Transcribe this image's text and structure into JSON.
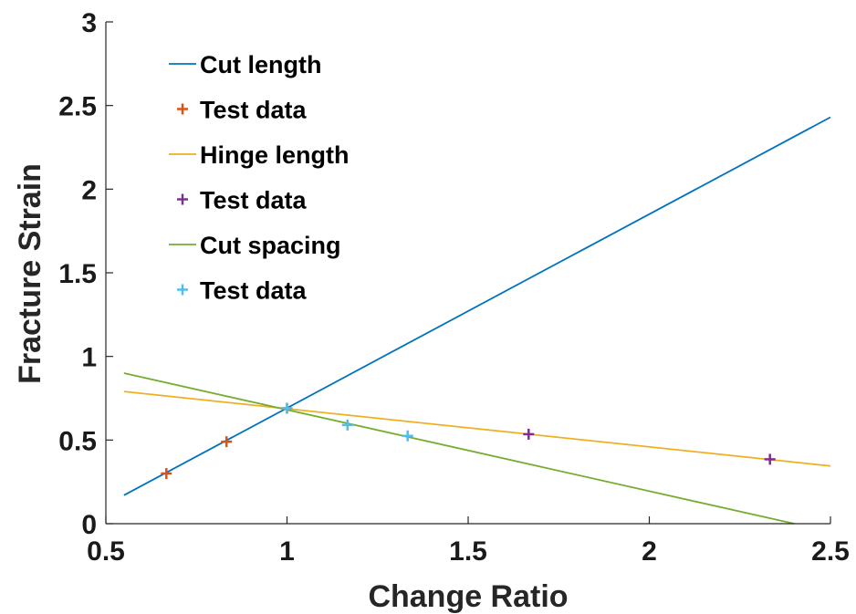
{
  "chart_data": {
    "type": "line",
    "xlabel": "Change Ratio",
    "ylabel": "Fracture Strain",
    "xlim": [
      0.5,
      2.5
    ],
    "ylim": [
      0,
      3
    ],
    "xticks": [
      "0.5",
      "1",
      "1.5",
      "2",
      "2.5"
    ],
    "yticks": [
      "0",
      "0.5",
      "1",
      "1.5",
      "2",
      "2.5",
      "3"
    ],
    "grid": false,
    "legend_position": "top-left",
    "series": [
      {
        "name": "Cut length",
        "kind": "line",
        "color": "#0072BD",
        "x": [
          0.55,
          2.5
        ],
        "y": [
          0.17,
          2.43
        ]
      },
      {
        "name": "Test data",
        "kind": "marker",
        "color": "#D95319",
        "x": [
          0.667,
          0.833,
          1.0
        ],
        "y": [
          0.3,
          0.49,
          0.69
        ]
      },
      {
        "name": "Hinge length",
        "kind": "line",
        "color": "#EDB120",
        "x": [
          0.55,
          2.5
        ],
        "y": [
          0.79,
          0.345
        ]
      },
      {
        "name": "Test data",
        "kind": "marker",
        "color": "#7E2F8E",
        "x": [
          1.667,
          2.333
        ],
        "y": [
          0.535,
          0.385
        ]
      },
      {
        "name": "Cut spacing",
        "kind": "line",
        "color": "#77AC30",
        "x": [
          0.55,
          2.4
        ],
        "y": [
          0.9,
          0.0
        ]
      },
      {
        "name": "Test data",
        "kind": "marker",
        "color": "#4DBEEE",
        "x": [
          1.0,
          1.167,
          1.333
        ],
        "y": [
          0.69,
          0.59,
          0.525
        ]
      }
    ]
  }
}
